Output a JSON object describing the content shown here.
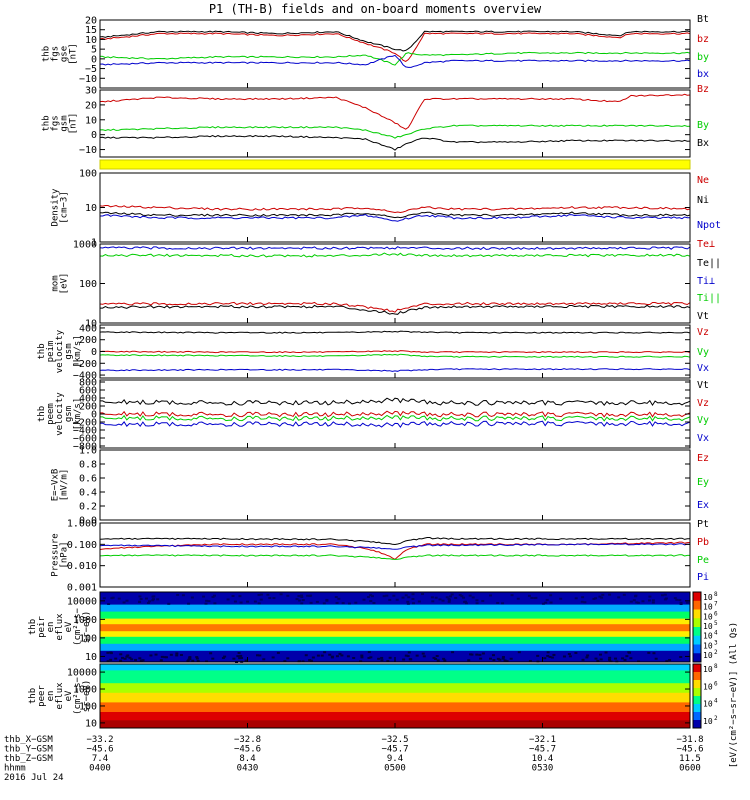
{
  "title": "P1 (TH-B) fields and on-board moments overview",
  "colors": {
    "black": "#000000",
    "red": "#cc0000",
    "green": "#00cc00",
    "blue": "#0000cc",
    "yellow": "#ffff00"
  },
  "chart_data": [
    {
      "type": "line",
      "ylabel": [
        "thb",
        "fgs",
        "gse",
        "[nT]"
      ],
      "ylim": [
        -15,
        20
      ],
      "ticks": [
        20,
        15,
        10,
        5,
        0,
        -5,
        -10
      ],
      "tick_labels": [
        "20",
        "15",
        "10",
        "5",
        "0",
        "−5",
        "−10"
      ],
      "series": [
        {
          "name": "Bt",
          "color": "#000000",
          "x": [
            0,
            0.1,
            0.2,
            0.3,
            0.4,
            0.45,
            0.5,
            0.52,
            0.55,
            0.6,
            0.7,
            0.8,
            0.88,
            0.9,
            1.0
          ],
          "values": [
            11,
            14,
            14,
            13,
            14,
            9,
            5,
            4,
            14,
            14,
            14,
            14,
            12,
            14,
            14
          ]
        },
        {
          "name": "bz",
          "color": "#cc0000",
          "x": [
            0,
            0.1,
            0.2,
            0.3,
            0.4,
            0.45,
            0.5,
            0.52,
            0.55,
            0.6,
            0.7,
            0.8,
            0.88,
            0.9,
            1.0
          ],
          "values": [
            10,
            13,
            13,
            12,
            13,
            8,
            3,
            -2,
            13,
            13,
            13,
            13,
            11,
            13,
            13
          ]
        },
        {
          "name": "by",
          "color": "#00cc00",
          "x": [
            0,
            0.1,
            0.2,
            0.3,
            0.4,
            0.45,
            0.5,
            0.52,
            0.55,
            0.6,
            0.7,
            0.8,
            0.9,
            1.0
          ],
          "values": [
            1,
            0,
            1,
            1,
            1,
            2,
            -3,
            3,
            2,
            2,
            3,
            3,
            3,
            3
          ]
        },
        {
          "name": "bx",
          "color": "#0000cc",
          "x": [
            0,
            0.1,
            0.2,
            0.3,
            0.4,
            0.45,
            0.5,
            0.52,
            0.55,
            0.6,
            0.7,
            0.8,
            0.9,
            1.0
          ],
          "values": [
            -3,
            -2,
            -2,
            -2,
            -2,
            -3,
            2,
            -5,
            -2,
            -1,
            -1,
            -1,
            -1,
            -1
          ]
        }
      ]
    },
    {
      "type": "line",
      "ylabel": [
        "thb",
        "fgs",
        "gsm",
        "[nT]"
      ],
      "ylim": [
        -15,
        30
      ],
      "ticks": [
        30,
        20,
        10,
        0,
        -10
      ],
      "tick_labels": [
        "30",
        "20",
        "10",
        "0",
        "−10"
      ],
      "series": [
        {
          "name": "Bz",
          "color": "#cc0000",
          "x": [
            0,
            0.1,
            0.2,
            0.3,
            0.4,
            0.45,
            0.5,
            0.52,
            0.55,
            0.6,
            0.7,
            0.8,
            0.88,
            0.9,
            1.0
          ],
          "values": [
            22,
            25,
            24,
            24,
            25,
            18,
            8,
            3,
            24,
            24,
            24,
            24,
            22,
            26,
            27
          ]
        },
        {
          "name": "By",
          "color": "#00cc00",
          "x": [
            0,
            0.1,
            0.2,
            0.3,
            0.4,
            0.45,
            0.5,
            0.52,
            0.55,
            0.6,
            0.7,
            0.8,
            0.9,
            1.0
          ],
          "values": [
            3,
            4,
            5,
            5,
            5,
            3,
            -2,
            0,
            4,
            6,
            6,
            6,
            6,
            6
          ]
        },
        {
          "name": "Bx",
          "color": "#000000",
          "x": [
            0,
            0.1,
            0.2,
            0.3,
            0.4,
            0.45,
            0.5,
            0.52,
            0.55,
            0.6,
            0.7,
            0.8,
            0.9,
            1.0
          ],
          "values": [
            -2,
            -2,
            -1,
            -1,
            -2,
            -3,
            -10,
            -6,
            -2,
            -5,
            -5,
            -4,
            -4,
            -4
          ]
        }
      ]
    },
    {
      "type": "line",
      "ylabel": [
        "Density",
        "[cm−3]"
      ],
      "log": true,
      "ylim": [
        1,
        100
      ],
      "ticks": [
        100,
        10,
        1
      ],
      "tick_labels": [
        "100",
        "10",
        "1"
      ],
      "series": [
        {
          "name": "Ne",
          "color": "#cc0000",
          "x": [
            0,
            0.1,
            0.2,
            0.3,
            0.4,
            0.45,
            0.5,
            0.55,
            0.6,
            0.7,
            0.8,
            0.9,
            1.0
          ],
          "values": [
            11,
            10,
            9,
            9,
            9,
            10,
            7,
            10,
            9,
            9,
            10,
            10,
            9
          ]
        },
        {
          "name": "Ni",
          "color": "#000000",
          "x": [
            0,
            0.1,
            0.2,
            0.3,
            0.4,
            0.45,
            0.5,
            0.55,
            0.6,
            0.7,
            0.8,
            0.9,
            1.0
          ],
          "values": [
            7,
            6,
            6,
            6,
            6,
            7,
            5,
            7,
            6,
            6,
            7,
            6,
            6
          ]
        },
        {
          "name": "Npot",
          "color": "#0000cc",
          "x": [
            0,
            0.1,
            0.2,
            0.3,
            0.4,
            0.45,
            0.5,
            0.55,
            0.6,
            0.7,
            0.8,
            0.9,
            1.0
          ],
          "values": [
            6,
            5,
            5,
            5,
            5,
            6,
            4,
            6,
            5,
            5,
            6,
            5,
            5
          ]
        }
      ]
    },
    {
      "type": "line",
      "ylabel": [
        "mom",
        "[eV]"
      ],
      "log": true,
      "ylim": [
        10,
        1000
      ],
      "ticks": [
        1000,
        100,
        10
      ],
      "tick_labels": [
        "1000",
        "100",
        "10"
      ],
      "series": [
        {
          "name": "Te⊥",
          "color": "#cc0000",
          "x": [
            0,
            0.2,
            0.4,
            0.5,
            0.55,
            0.6,
            0.8,
            1.0
          ],
          "values": [
            30,
            31,
            31,
            20,
            30,
            31,
            31,
            31
          ]
        },
        {
          "name": "Te||",
          "color": "#000000",
          "x": [
            0,
            0.2,
            0.4,
            0.5,
            0.55,
            0.6,
            0.8,
            1.0
          ],
          "values": [
            25,
            26,
            26,
            17,
            25,
            26,
            26,
            26
          ]
        },
        {
          "name": "Ti⊥",
          "color": "#0000cc",
          "x": [
            0,
            0.2,
            0.4,
            0.5,
            0.55,
            0.6,
            0.8,
            1.0
          ],
          "values": [
            800,
            780,
            790,
            800,
            790,
            780,
            780,
            790
          ]
        },
        {
          "name": "Ti||",
          "color": "#00cc00",
          "x": [
            0,
            0.2,
            0.4,
            0.5,
            0.55,
            0.6,
            0.8,
            1.0
          ],
          "values": [
            520,
            510,
            500,
            560,
            520,
            510,
            510,
            520
          ]
        }
      ]
    },
    {
      "type": "line",
      "ylabel": [
        "thb",
        "peim",
        "velocity",
        "gsm",
        "[km/s]"
      ],
      "ylim": [
        -450,
        450
      ],
      "ticks": [
        400,
        200,
        0,
        -200,
        -400
      ],
      "tick_labels": [
        "400",
        "200",
        "0",
        "−200",
        "−400"
      ],
      "series": [
        {
          "name": "Vt",
          "color": "#000000",
          "x": [
            0,
            0.2,
            0.4,
            0.5,
            0.55,
            0.6,
            0.8,
            1.0
          ],
          "values": [
            330,
            320,
            320,
            340,
            330,
            320,
            320,
            320
          ]
        },
        {
          "name": "Vz",
          "color": "#cc0000",
          "x": [
            0,
            0.2,
            0.4,
            0.5,
            0.55,
            0.6,
            0.8,
            1.0
          ],
          "values": [
            0,
            -10,
            -10,
            10,
            -10,
            -10,
            -10,
            -10
          ]
        },
        {
          "name": "Vy",
          "color": "#00cc00",
          "x": [
            0,
            0.2,
            0.4,
            0.5,
            0.55,
            0.6,
            0.8,
            1.0
          ],
          "values": [
            -60,
            -70,
            -80,
            -50,
            -80,
            -90,
            -90,
            -90
          ]
        },
        {
          "name": "Vx",
          "color": "#0000cc",
          "x": [
            0,
            0.2,
            0.4,
            0.5,
            0.55,
            0.6,
            0.8,
            1.0
          ],
          "values": [
            -320,
            -310,
            -310,
            -330,
            -310,
            -300,
            -300,
            -300
          ]
        }
      ]
    },
    {
      "type": "line",
      "ylabel": [
        "thb",
        "peem",
        "velocity",
        "gsm",
        "[km/s]"
      ],
      "ylim": [
        -850,
        850
      ],
      "ticks": [
        800,
        600,
        400,
        200,
        0,
        -200,
        -400,
        -600,
        -800
      ],
      "tick_labels": [
        "800",
        "600",
        "400",
        "200",
        "0",
        "−200",
        "−400",
        "−600",
        "−800"
      ],
      "series": [
        {
          "name": "Vt",
          "color": "#000000",
          "x": [
            0,
            0.2,
            0.4,
            0.5,
            0.55,
            0.6,
            0.8,
            1.0
          ],
          "values": [
            300,
            280,
            280,
            350,
            290,
            280,
            280,
            280
          ]
        },
        {
          "name": "Vz",
          "color": "#cc0000",
          "x": [
            0,
            0.2,
            0.4,
            0.5,
            0.55,
            0.6,
            0.8,
            1.0
          ],
          "values": [
            0,
            -10,
            -10,
            20,
            -10,
            -10,
            -10,
            -10
          ]
        },
        {
          "name": "Vy",
          "color": "#00cc00",
          "x": [
            0,
            0.2,
            0.4,
            0.5,
            0.55,
            0.6,
            0.8,
            1.0
          ],
          "values": [
            -100,
            -110,
            -110,
            -90,
            -110,
            -110,
            -110,
            -110
          ]
        },
        {
          "name": "Vx",
          "color": "#0000cc",
          "x": [
            0,
            0.2,
            0.4,
            0.5,
            0.55,
            0.6,
            0.8,
            1.0
          ],
          "values": [
            -260,
            -250,
            -250,
            -280,
            -250,
            -240,
            -240,
            -240
          ]
        }
      ]
    },
    {
      "type": "line",
      "ylabel": [
        "E=−VxB",
        "[mV/m]"
      ],
      "ylim": [
        0,
        1.0
      ],
      "ticks": [
        1.0,
        0.8,
        0.6,
        0.4,
        0.2,
        0.0
      ],
      "tick_labels": [
        "1.0",
        "0.8",
        "0.6",
        "0.4",
        "0.2",
        "0.0"
      ],
      "series": [
        {
          "name": "Ez",
          "color": "#cc0000",
          "x": [],
          "values": []
        },
        {
          "name": "Ey",
          "color": "#00cc00",
          "x": [],
          "values": []
        },
        {
          "name": "Ex",
          "color": "#0000cc",
          "x": [],
          "values": []
        }
      ]
    },
    {
      "type": "line",
      "ylabel": [
        "Pressure",
        "[nPa]"
      ],
      "log": true,
      "ylim": [
        0.001,
        1.0
      ],
      "ticks": [
        1.0,
        0.1,
        0.01,
        0.001
      ],
      "tick_labels": [
        "1.000",
        "0.100",
        "0.010",
        "0.001"
      ],
      "series": [
        {
          "name": "Pt",
          "color": "#000000",
          "x": [
            0,
            0.2,
            0.4,
            0.5,
            0.55,
            0.6,
            0.8,
            1.0
          ],
          "values": [
            0.18,
            0.18,
            0.17,
            0.1,
            0.2,
            0.18,
            0.18,
            0.18
          ]
        },
        {
          "name": "Pb",
          "color": "#cc0000",
          "x": [
            0,
            0.2,
            0.4,
            0.5,
            0.55,
            0.6,
            0.8,
            1.0
          ],
          "values": [
            0.06,
            0.1,
            0.1,
            0.02,
            0.1,
            0.1,
            0.1,
            0.12
          ]
        },
        {
          "name": "Pe",
          "color": "#00cc00",
          "x": [
            0,
            0.2,
            0.4,
            0.5,
            0.55,
            0.6,
            0.8,
            1.0
          ],
          "values": [
            0.03,
            0.03,
            0.03,
            0.02,
            0.03,
            0.03,
            0.03,
            0.03
          ]
        },
        {
          "name": "Pi",
          "color": "#0000cc",
          "x": [
            0,
            0.2,
            0.4,
            0.5,
            0.55,
            0.6,
            0.8,
            1.0
          ],
          "values": [
            0.09,
            0.08,
            0.08,
            0.06,
            0.09,
            0.09,
            0.1,
            0.1
          ]
        }
      ]
    },
    {
      "type": "heatmap",
      "ylabel": [
        "thb",
        "peir",
        "en",
        "eflux",
        "eV",
        "(cm²−s−",
        "sr−eV)"
      ],
      "log": true,
      "ylim": [
        5,
        30000
      ],
      "ticks": [
        10000,
        1000,
        100,
        10
      ],
      "tick_labels": [
        "10000",
        "1000",
        "100",
        "10"
      ],
      "colorbar_exponents": [
        "8",
        "7",
        "6",
        "5",
        "4",
        "3",
        "2"
      ],
      "colorbar_label": "[eV/(cm²−s−sr−eV)] (All Qs)"
    },
    {
      "type": "heatmap",
      "ylabel": [
        "thb",
        "peer",
        "en",
        "eflux",
        "eV",
        "(cm²−s−",
        "sr−eV)"
      ],
      "log": true,
      "ylim": [
        5,
        30000
      ],
      "ticks": [
        10000,
        1000,
        100,
        10
      ],
      "tick_labels": [
        "10000",
        "1000",
        "100",
        "10"
      ],
      "colorbar_exponents": [
        "8",
        "6",
        "4",
        "2"
      ],
      "colorbar_label": "[eV/(cm²−s−sr−eV)] (All Qs)"
    }
  ],
  "x_axis": {
    "rows": [
      {
        "label": "thb_X−GSM",
        "values": [
          "−33.2",
          "−32.8",
          "−32.5",
          "−32.1",
          "−31.8"
        ]
      },
      {
        "label": "thb_Y−GSM",
        "values": [
          "−45.6",
          "−45.6",
          "−45.7",
          "−45.7",
          "−45.6"
        ]
      },
      {
        "label": "thb_Z−GSM",
        "values": [
          "7.4",
          "8.4",
          "9.4",
          "10.4",
          "11.5"
        ]
      },
      {
        "label": "hhmm",
        "values": [
          "0400",
          "0430",
          "0500",
          "0530",
          "0600"
        ]
      }
    ],
    "date": "2016 Jul 24"
  }
}
